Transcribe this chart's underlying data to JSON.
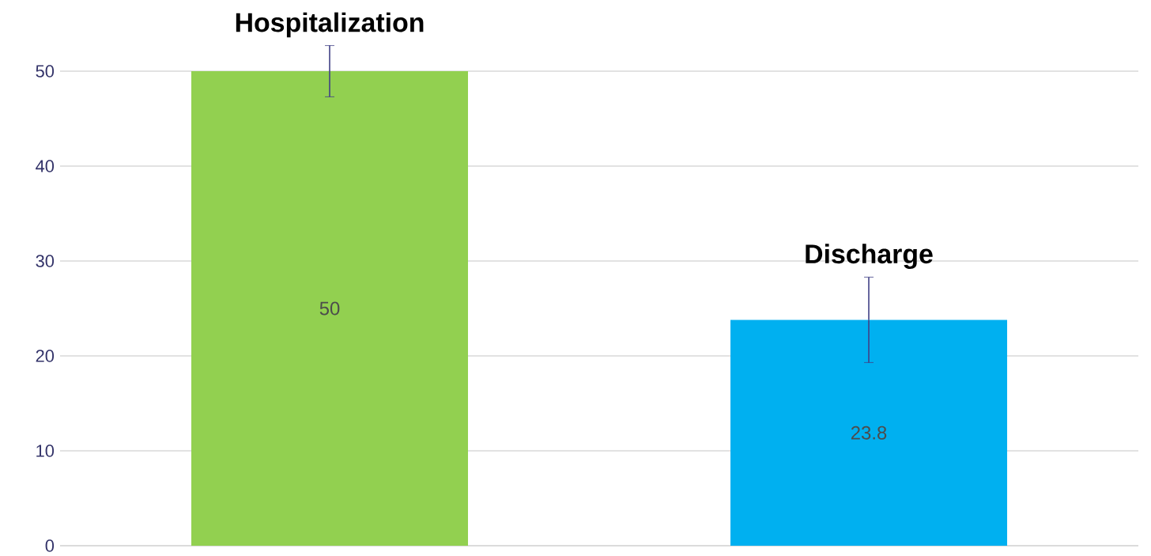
{
  "chart_data": {
    "type": "bar",
    "categories": [
      "Hospitalization",
      "Discharge"
    ],
    "values": [
      50,
      23.8
    ],
    "colors": [
      "#92d050",
      "#00b0f0"
    ],
    "errors": [
      2.7,
      4.5
    ],
    "data_labels": true,
    "ylim": [
      0,
      50
    ],
    "yticks": [
      0,
      10,
      20,
      30,
      40,
      50
    ],
    "grid": "y"
  }
}
